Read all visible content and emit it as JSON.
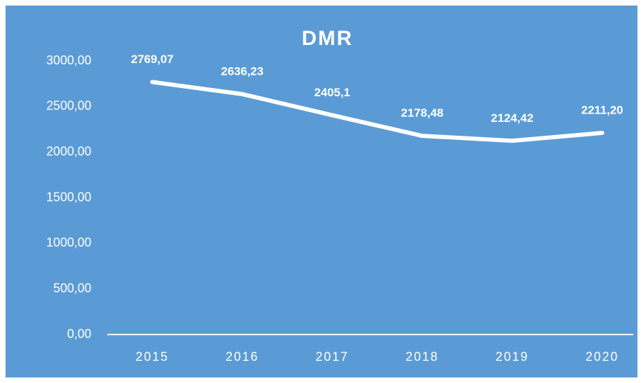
{
  "chart_data": {
    "type": "line",
    "title": "DMR",
    "categories": [
      "2015",
      "2016",
      "2017",
      "2018",
      "2019",
      "2020"
    ],
    "series": [
      {
        "name": "DMR",
        "color": "#ffffff",
        "values": [
          2769.07,
          2636.23,
          2405.1,
          2178.48,
          2124.42,
          2211.2
        ],
        "value_labels": [
          "2769,07",
          "2636,23",
          "2405,1",
          "2178,48",
          "2124,42",
          "2211,20"
        ]
      }
    ],
    "ylim": [
      0,
      3000
    ],
    "yticks": [
      {
        "value": 0,
        "label": "0,00"
      },
      {
        "value": 500,
        "label": "500,00"
      },
      {
        "value": 1000,
        "label": "1000,00"
      },
      {
        "value": 1500,
        "label": "1500,00"
      },
      {
        "value": 2000,
        "label": "2000,00"
      },
      {
        "value": 2500,
        "label": "2500,00"
      },
      {
        "value": 3000,
        "label": "3000,00"
      }
    ],
    "grid": false,
    "drop_lines": true,
    "background": "#5b9bd5"
  }
}
